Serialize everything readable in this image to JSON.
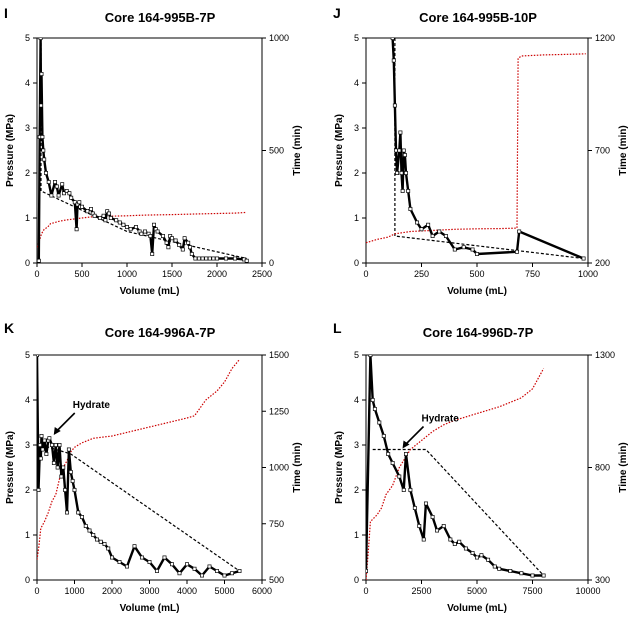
{
  "chart_data": [
    {
      "type": "line",
      "panel_letter": "I",
      "title": "Core 164-995B-7P",
      "xlabel": "Volume (mL)",
      "ylabel_left": "Pressure (MPa)",
      "ylabel_right": "Time (min)",
      "xlim": [
        0,
        2500
      ],
      "ylim_left": [
        0,
        5
      ],
      "ylim_right": [
        0,
        1000
      ],
      "xticks": [
        "0",
        "500",
        "1000",
        "1500",
        "2000",
        "2500"
      ],
      "yticks_left": [
        "0",
        "1",
        "2",
        "3",
        "4",
        "5"
      ],
      "yticks_right": [
        "0",
        "500",
        "1000"
      ],
      "yticks_right_values": [
        0,
        500,
        1000
      ],
      "annotation": null,
      "colors": {
        "pressure": "#000000",
        "time": "#cc0000",
        "equilibrium": "#000000"
      },
      "series": [
        {
          "role": "pressure",
          "x": [
            20,
            30,
            40,
            45,
            50,
            60,
            70,
            80,
            100,
            130,
            160,
            200,
            220,
            240,
            280,
            300,
            330,
            360,
            380,
            420,
            440,
            450,
            470,
            480,
            500,
            560,
            600,
            620,
            640,
            700,
            740,
            760,
            780,
            800,
            820,
            880,
            920,
            960,
            1000,
            1040,
            1100,
            1140,
            1160,
            1200,
            1240,
            1260,
            1280,
            1300,
            1320,
            1340,
            1400,
            1440,
            1460,
            1480,
            1500,
            1540,
            1580,
            1620,
            1640,
            1680,
            1700,
            1720,
            1760,
            1800,
            1840,
            1880,
            1920,
            1960,
            2000,
            2100,
            2200,
            2300,
            2330
          ],
          "y": [
            0.05,
            2.8,
            5.0,
            3.5,
            4.2,
            2.8,
            2.5,
            2.3,
            2.0,
            1.8,
            1.5,
            1.8,
            1.7,
            1.5,
            1.75,
            1.55,
            1.6,
            1.55,
            1.45,
            1.35,
            0.75,
            1.3,
            1.35,
            1.25,
            1.25,
            1.15,
            1.2,
            1.1,
            1.05,
            1.0,
            1.05,
            0.95,
            1.15,
            1.1,
            1.0,
            0.95,
            0.9,
            0.85,
            0.8,
            0.75,
            0.8,
            0.7,
            0.65,
            0.7,
            0.65,
            0.6,
            0.2,
            0.85,
            0.75,
            0.7,
            0.6,
            0.45,
            0.35,
            0.6,
            0.55,
            0.5,
            0.4,
            0.3,
            0.55,
            0.45,
            0.35,
            0.2,
            0.1,
            0.1,
            0.1,
            0.1,
            0.1,
            0.1,
            0.1,
            0.1,
            0.1,
            0.08,
            0.05
          ]
        },
        {
          "role": "equilibrium",
          "x": [
            45,
            45,
            1000,
            2330
          ],
          "y": [
            5.0,
            1.6,
            0.7,
            0.1
          ]
        },
        {
          "role": "time",
          "x": [
            0,
            20,
            50,
            80,
            120,
            150,
            200,
            240,
            300,
            400,
            500,
            600,
            800,
            1000,
            1200,
            1500,
            1800,
            2000,
            2200,
            2330
          ],
          "y": [
            70,
            90,
            130,
            150,
            160,
            175,
            180,
            185,
            190,
            195,
            200,
            205,
            208,
            210,
            213,
            215,
            218,
            220,
            222,
            225
          ]
        }
      ]
    },
    {
      "type": "line",
      "panel_letter": "J",
      "title": "Core 164-995B-10P",
      "xlabel": "Volume (mL)",
      "ylabel_left": "Pressure (MPa)",
      "ylabel_right": "Time (min)",
      "xlim": [
        0,
        1000
      ],
      "ylim_left": [
        0,
        5
      ],
      "ylim_right": [
        200,
        1200
      ],
      "xticks": [
        "0",
        "250",
        "500",
        "750",
        "1000"
      ],
      "yticks_left": [
        "0",
        "1",
        "2",
        "3",
        "4",
        "5"
      ],
      "yticks_right": [
        "200",
        "700",
        "1200"
      ],
      "yticks_right_values": [
        200,
        700,
        1200
      ],
      "annotation": null,
      "colors": {
        "pressure": "#000000",
        "time": "#cc0000",
        "equilibrium": "#000000"
      },
      "series": [
        {
          "role": "pressure",
          "x": [
            120,
            125,
            130,
            135,
            140,
            150,
            155,
            160,
            165,
            170,
            175,
            180,
            190,
            200,
            230,
            250,
            280,
            300,
            330,
            360,
            400,
            440,
            480,
            500,
            680,
            690,
            980
          ],
          "y": [
            5.0,
            4.5,
            3.5,
            2.5,
            2.0,
            2.5,
            2.9,
            2.0,
            1.6,
            2.5,
            2.4,
            2.0,
            1.6,
            1.2,
            0.9,
            0.75,
            0.85,
            0.6,
            0.7,
            0.6,
            0.3,
            0.35,
            0.3,
            0.2,
            0.25,
            0.7,
            0.1
          ]
        },
        {
          "role": "equilibrium",
          "x": [
            130,
            130,
            980
          ],
          "y": [
            5.0,
            0.6,
            0.1
          ]
        },
        {
          "role": "time",
          "x": [
            0,
            50,
            100,
            130,
            200,
            300,
            400,
            500,
            600,
            680,
            685,
            700,
            800,
            900,
            990
          ],
          "y": [
            290,
            305,
            315,
            330,
            340,
            345,
            350,
            352,
            353,
            355,
            1110,
            1120,
            1125,
            1127,
            1130
          ]
        }
      ]
    },
    {
      "type": "line",
      "panel_letter": "K",
      "title": "Core 164-996A-7P",
      "xlabel": "Volume (mL)",
      "ylabel_left": "Pressure (MPa)",
      "ylabel_right": "Time (min)",
      "xlim": [
        0,
        6000
      ],
      "ylim_left": [
        0,
        5
      ],
      "ylim_right": [
        500,
        1500
      ],
      "xticks": [
        "0",
        "1000",
        "2000",
        "3000",
        "4000",
        "5000",
        "6000"
      ],
      "yticks_left": [
        "0",
        "1",
        "2",
        "3",
        "4",
        "5"
      ],
      "yticks_right": [
        "500",
        "750",
        "1000",
        "1250",
        "1500"
      ],
      "yticks_right_values": [
        500,
        750,
        1000,
        1250,
        1500
      ],
      "annotation": {
        "text": "Hydrate",
        "x": 420,
        "y": 3.2
      },
      "colors": {
        "pressure": "#000000",
        "time": "#cc0000",
        "equilibrium": "#000000"
      },
      "series": [
        {
          "role": "pressure",
          "x": [
            0,
            40,
            80,
            100,
            120,
            150,
            200,
            250,
            300,
            330,
            400,
            450,
            500,
            550,
            600,
            650,
            700,
            750,
            800,
            850,
            900,
            950,
            1000,
            1100,
            1200,
            1300,
            1400,
            1500,
            1600,
            1700,
            1800,
            1900,
            2000,
            2200,
            2400,
            2600,
            2800,
            3000,
            3200,
            3400,
            3600,
            3800,
            4000,
            4200,
            4400,
            4600,
            4800,
            5000,
            5200,
            5400
          ],
          "y": [
            5.0,
            2.0,
            3.0,
            2.7,
            3.2,
            2.9,
            3.1,
            2.8,
            3.1,
            3.15,
            3.0,
            2.6,
            3.0,
            2.5,
            3.0,
            2.3,
            2.5,
            2.0,
            1.5,
            2.9,
            2.4,
            2.2,
            2.0,
            1.5,
            1.4,
            1.2,
            1.1,
            1.0,
            0.9,
            0.85,
            0.8,
            0.7,
            0.5,
            0.4,
            0.3,
            0.75,
            0.5,
            0.4,
            0.2,
            0.5,
            0.35,
            0.15,
            0.35,
            0.25,
            0.1,
            0.3,
            0.2,
            0.1,
            0.15,
            0.2
          ]
        },
        {
          "role": "equilibrium",
          "x": [
            120,
            900,
            5400
          ],
          "y": [
            3.0,
            2.8,
            0.2
          ]
        },
        {
          "role": "time",
          "x": [
            0,
            50,
            100,
            200,
            300,
            400,
            500,
            600,
            700,
            800,
            900,
            1000,
            1100,
            1200,
            1500,
            2000,
            2500,
            3000,
            3500,
            4000,
            4200,
            4500,
            4800,
            5000,
            5200,
            5400
          ],
          "y": [
            590,
            650,
            730,
            760,
            800,
            850,
            880,
            950,
            1000,
            1030,
            1070,
            1090,
            1100,
            1110,
            1130,
            1140,
            1160,
            1180,
            1200,
            1220,
            1230,
            1300,
            1340,
            1380,
            1440,
            1480
          ]
        }
      ]
    },
    {
      "type": "line",
      "panel_letter": "L",
      "title": "Core 164-996D-7P",
      "xlabel": "Volume (mL)",
      "ylabel_left": "Pressure (MPa)",
      "ylabel_right": "Time (min)",
      "xlim": [
        0,
        10000
      ],
      "ylim_left": [
        0,
        5
      ],
      "ylim_right": [
        300,
        1300
      ],
      "xticks": [
        "0",
        "2500",
        "5000",
        "7500",
        "10000"
      ],
      "yticks_left": [
        "0",
        "1",
        "2",
        "3",
        "4",
        "5"
      ],
      "yticks_right": [
        "300",
        "800",
        "1300"
      ],
      "yticks_right_values": [
        300,
        800,
        1300
      ],
      "annotation": {
        "text": "Hydrate",
        "x": 1600,
        "y": 2.9
      },
      "colors": {
        "pressure": "#000000",
        "time": "#cc0000",
        "equilibrium": "#000000"
      },
      "series": [
        {
          "role": "pressure",
          "x": [
            0,
            200,
            300,
            400,
            600,
            800,
            1000,
            1200,
            1500,
            1700,
            1800,
            2000,
            2200,
            2400,
            2600,
            2700,
            3000,
            3200,
            3500,
            3800,
            4000,
            4200,
            4500,
            4800,
            5000,
            5200,
            5500,
            5800,
            6000,
            6500,
            7000,
            7500,
            8000
          ],
          "y": [
            0.2,
            5.0,
            4.0,
            3.8,
            3.5,
            3.2,
            2.8,
            2.6,
            2.3,
            2.0,
            2.8,
            2.0,
            1.6,
            1.2,
            0.9,
            1.7,
            1.4,
            1.1,
            1.2,
            0.9,
            0.8,
            0.85,
            0.7,
            0.6,
            0.5,
            0.55,
            0.45,
            0.3,
            0.25,
            0.2,
            0.15,
            0.1,
            0.1
          ]
        },
        {
          "role": "equilibrium",
          "x": [
            300,
            2700,
            8000
          ],
          "y": [
            2.9,
            2.9,
            0.1
          ]
        },
        {
          "role": "time",
          "x": [
            0,
            100,
            200,
            300,
            400,
            500,
            700,
            900,
            1200,
            1500,
            2000,
            2500,
            3000,
            3500,
            4000,
            5000,
            6000,
            6500,
            7000,
            7500,
            8000
          ],
          "y": [
            300,
            420,
            560,
            570,
            580,
            590,
            620,
            680,
            720,
            800,
            880,
            920,
            960,
            990,
            1010,
            1040,
            1070,
            1090,
            1110,
            1150,
            1240
          ]
        }
      ]
    }
  ]
}
